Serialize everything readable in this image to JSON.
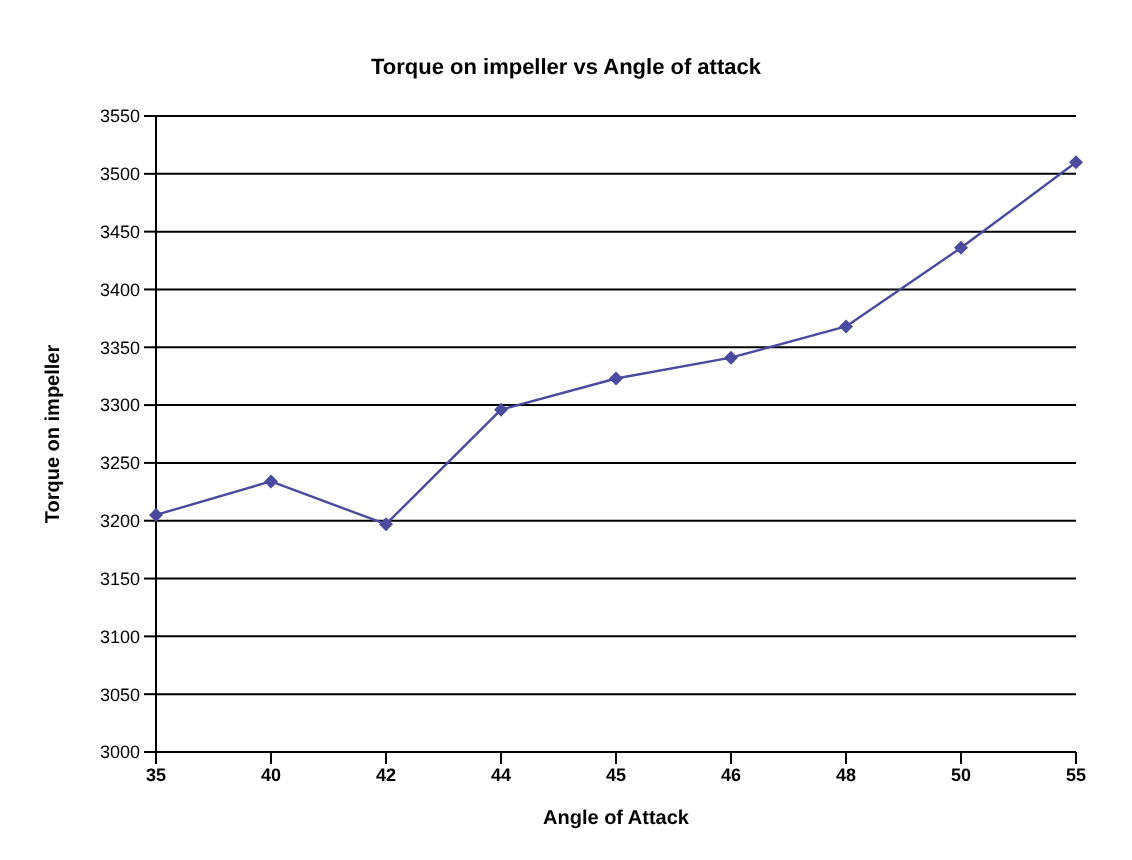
{
  "chart_data": {
    "type": "line",
    "title": "Torque on impeller vs Angle of attack",
    "xlabel": "Angle of Attack",
    "ylabel": "Torque on impeller",
    "categories": [
      "35",
      "40",
      "42",
      "44",
      "45",
      "46",
      "48",
      "50",
      "55"
    ],
    "series": [
      {
        "color": "#4a4a9e",
        "values": [
          3205,
          3234,
          3197,
          3296,
          3323,
          3341,
          3368,
          3436,
          3510
        ]
      }
    ],
    "ylim": [
      3000,
      3550
    ],
    "yticks": [
      3000,
      3050,
      3100,
      3150,
      3200,
      3250,
      3300,
      3350,
      3400,
      3450,
      3500,
      3550
    ],
    "grid": "y",
    "legend": false,
    "marker": "diamond",
    "line_style": "solid"
  }
}
